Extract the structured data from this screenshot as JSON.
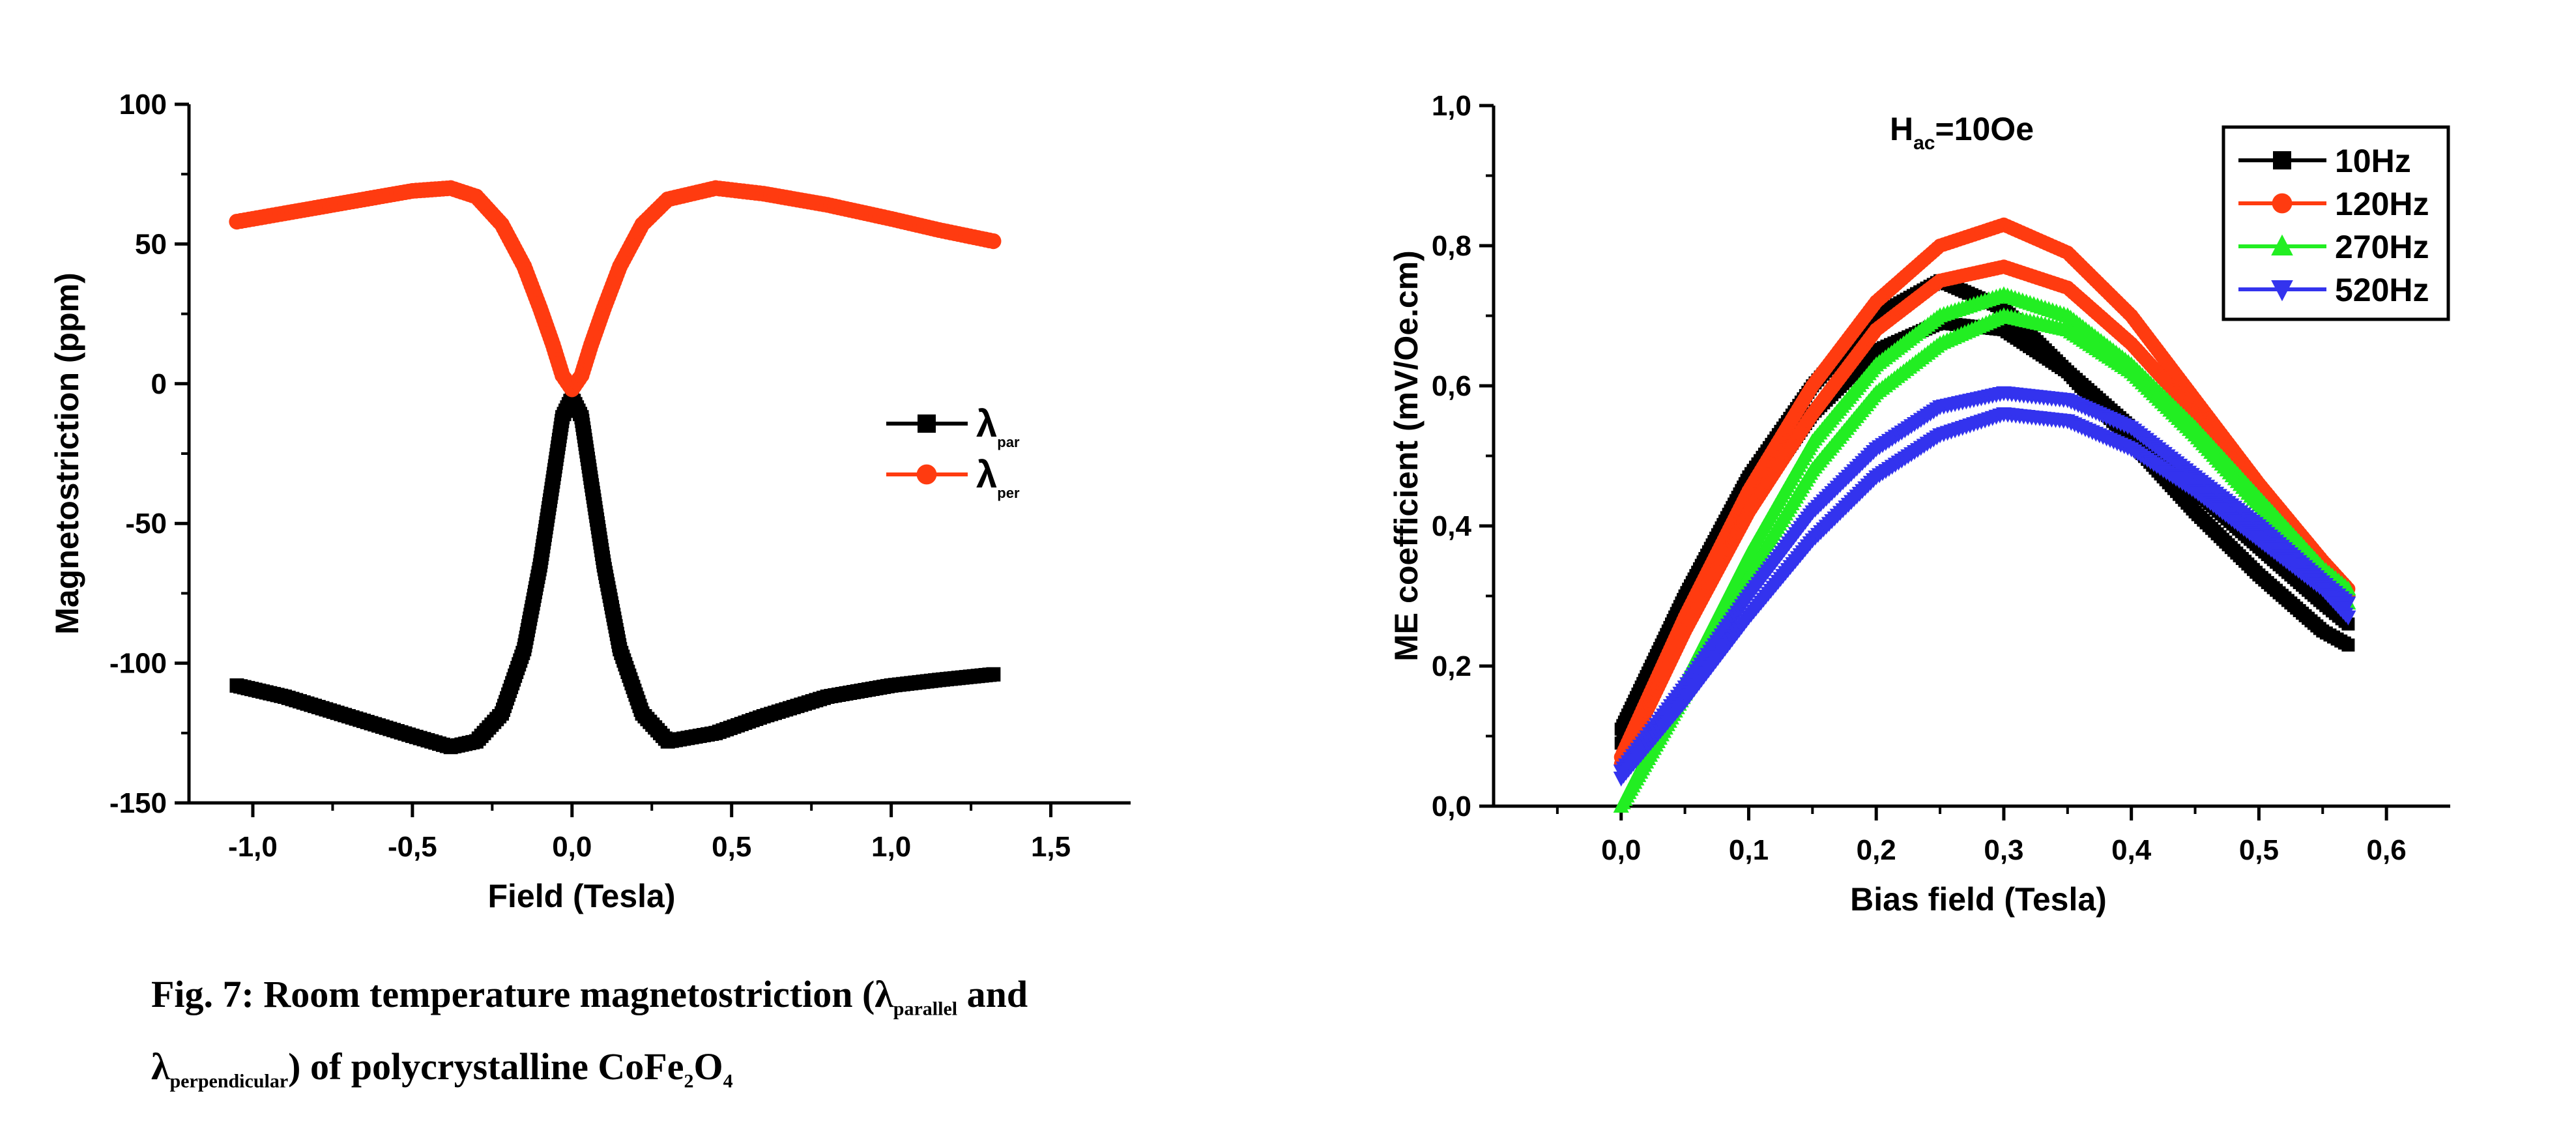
{
  "chart_data": [
    {
      "type": "scatter",
      "xlabel": "Field (Tesla)",
      "ylabel": "Magnetostriction (ppm)",
      "xlim": [
        -1.2,
        1.75
      ],
      "ylim": [
        -150,
        100
      ],
      "xticks": [
        "-1,0",
        "-0,5",
        "0,0",
        "0,5",
        "1,0",
        "1,5"
      ],
      "xtick_values": [
        -1.0,
        -0.5,
        0.0,
        0.5,
        1.0,
        1.5
      ],
      "yticks": [
        "100",
        "50",
        "0",
        "-50",
        "-100",
        "-150"
      ],
      "ytick_values": [
        100,
        50,
        0,
        -50,
        -100,
        -150
      ],
      "legend": {
        "placement": "right",
        "entries": [
          {
            "label": "λ",
            "sub": "par",
            "color": "#000000",
            "marker": "square"
          },
          {
            "label": "λ",
            "sub": "per",
            "color": "#ff3b10",
            "marker": "circle"
          }
        ]
      },
      "series": [
        {
          "color": "#000000",
          "marker": "square",
          "x": [
            -1.05,
            -0.9,
            -0.7,
            -0.5,
            -0.38,
            -0.3,
            -0.22,
            -0.15,
            -0.1,
            -0.06,
            -0.03,
            0.0,
            0.03,
            0.06,
            0.1,
            0.15,
            0.22,
            0.3,
            0.45,
            0.6,
            0.8,
            1.0,
            1.15,
            1.32
          ],
          "y": [
            -108,
            -112,
            -119,
            -126,
            -130,
            -128,
            -118,
            -95,
            -65,
            -35,
            -12,
            -5,
            -12,
            -35,
            -65,
            -95,
            -118,
            -128,
            -125,
            -119,
            -112,
            -108,
            -106,
            -104
          ]
        },
        {
          "color": "#ff3b10",
          "marker": "circle",
          "x": [
            -1.05,
            -0.9,
            -0.7,
            -0.5,
            -0.38,
            -0.3,
            -0.22,
            -0.15,
            -0.1,
            -0.06,
            -0.03,
            0.0,
            0.03,
            0.06,
            0.1,
            0.15,
            0.22,
            0.3,
            0.45,
            0.6,
            0.8,
            1.0,
            1.15,
            1.32
          ],
          "y": [
            58,
            61,
            65,
            69,
            70,
            67,
            57,
            42,
            27,
            14,
            3,
            -2,
            3,
            14,
            27,
            42,
            57,
            66,
            70,
            68,
            64,
            59,
            55,
            51
          ]
        }
      ]
    },
    {
      "type": "scatter",
      "title": "H",
      "title_sub": "ac",
      "title_rest": "=10Oe",
      "xlabel": "Bias field (Tesla)",
      "ylabel": "ME coefficient (mV/Oe.cm)",
      "xlim": [
        -0.1,
        0.65
      ],
      "ylim": [
        0,
        1.0
      ],
      "xticks": [
        "0,0",
        "0,1",
        "0,2",
        "0,3",
        "0,4",
        "0,5",
        "0,6"
      ],
      "xtick_values": [
        0.0,
        0.1,
        0.2,
        0.3,
        0.4,
        0.5,
        0.6
      ],
      "yticks": [
        "1,0",
        "0,8",
        "0,6",
        "0,4",
        "0,2",
        "0,0"
      ],
      "ytick_values": [
        1.0,
        0.8,
        0.6,
        0.4,
        0.2,
        0.0
      ],
      "legend": {
        "placement": "top-right"
      },
      "series": [
        {
          "name": "10Hz",
          "color": "#000000",
          "marker": "square",
          "x": [
            0.0,
            0.05,
            0.1,
            0.15,
            0.2,
            0.25,
            0.3,
            0.35,
            0.4,
            0.45,
            0.5,
            0.55,
            0.57
          ],
          "y": [
            0.11,
            0.3,
            0.47,
            0.6,
            0.7,
            0.75,
            0.71,
            0.62,
            0.52,
            0.42,
            0.33,
            0.25,
            0.23
          ]
        },
        {
          "name": "10Hz",
          "color": "#000000",
          "marker": "square",
          "x": [
            0.0,
            0.05,
            0.1,
            0.15,
            0.2,
            0.25,
            0.3,
            0.35,
            0.4,
            0.45,
            0.5,
            0.55,
            0.57
          ],
          "y": [
            0.09,
            0.26,
            0.43,
            0.56,
            0.65,
            0.69,
            0.68,
            0.62,
            0.54,
            0.45,
            0.37,
            0.29,
            0.26
          ]
        },
        {
          "name": "120Hz",
          "color": "#ff3b10",
          "marker": "circle",
          "x": [
            0.0,
            0.05,
            0.1,
            0.15,
            0.2,
            0.25,
            0.3,
            0.35,
            0.4,
            0.45,
            0.5,
            0.55,
            0.57
          ],
          "y": [
            0.07,
            0.27,
            0.45,
            0.6,
            0.72,
            0.8,
            0.83,
            0.79,
            0.7,
            0.58,
            0.46,
            0.35,
            0.31
          ]
        },
        {
          "name": "120Hz",
          "color": "#ff3b10",
          "marker": "circle",
          "x": [
            0.0,
            0.05,
            0.1,
            0.15,
            0.2,
            0.25,
            0.3,
            0.35,
            0.4,
            0.45,
            0.5,
            0.55,
            0.57
          ],
          "y": [
            0.06,
            0.25,
            0.42,
            0.56,
            0.68,
            0.75,
            0.77,
            0.74,
            0.66,
            0.56,
            0.45,
            0.34,
            0.3
          ]
        },
        {
          "name": "270Hz",
          "color": "#22ee22",
          "marker": "triangle-up",
          "x": [
            0.0,
            0.05,
            0.1,
            0.15,
            0.2,
            0.25,
            0.3,
            0.35,
            0.4,
            0.45,
            0.5,
            0.55,
            0.57
          ],
          "y": [
            0.0,
            0.18,
            0.36,
            0.52,
            0.63,
            0.7,
            0.73,
            0.7,
            0.63,
            0.54,
            0.44,
            0.34,
            0.31
          ]
        },
        {
          "name": "270Hz",
          "color": "#22ee22",
          "marker": "triangle-up",
          "x": [
            0.0,
            0.05,
            0.1,
            0.15,
            0.2,
            0.25,
            0.3,
            0.35,
            0.4,
            0.45,
            0.5,
            0.55,
            0.57
          ],
          "y": [
            0.0,
            0.16,
            0.33,
            0.48,
            0.59,
            0.66,
            0.7,
            0.68,
            0.62,
            0.53,
            0.43,
            0.33,
            0.29
          ]
        },
        {
          "name": "520Hz",
          "color": "#3333ee",
          "marker": "triangle-down",
          "x": [
            0.0,
            0.05,
            0.1,
            0.15,
            0.2,
            0.25,
            0.3,
            0.35,
            0.4,
            0.45,
            0.5,
            0.55,
            0.57
          ],
          "y": [
            0.05,
            0.17,
            0.3,
            0.42,
            0.51,
            0.57,
            0.59,
            0.58,
            0.54,
            0.47,
            0.4,
            0.32,
            0.29
          ]
        },
        {
          "name": "520Hz",
          "color": "#3333ee",
          "marker": "triangle-down",
          "x": [
            0.0,
            0.05,
            0.1,
            0.15,
            0.2,
            0.25,
            0.3,
            0.35,
            0.4,
            0.45,
            0.5,
            0.55,
            0.57
          ],
          "y": [
            0.04,
            0.15,
            0.27,
            0.38,
            0.47,
            0.53,
            0.56,
            0.55,
            0.51,
            0.45,
            0.38,
            0.31,
            0.27
          ]
        }
      ]
    }
  ],
  "caption": {
    "line1_pre": "Fig. 7: Room temperature magnetostriction (λ",
    "line1_sub": "parallel",
    "line1_post": " and",
    "line2_pre": "λ",
    "line2_sub": "perpendicular",
    "line2_post": ") of polycrystalline CoFe",
    "formula_sub1": "2",
    "formula_o": "O",
    "formula_sub2": "4"
  }
}
